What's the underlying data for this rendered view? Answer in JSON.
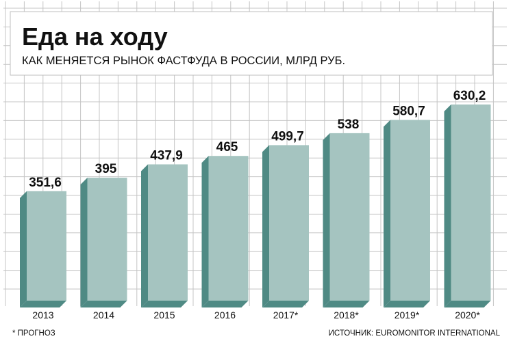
{
  "header": {
    "title": "Еда на ходу",
    "subtitle": "КАК МЕНЯЕТСЯ РЫНОК ФАСТФУДА В РОССИИ, МЛРД РУБ."
  },
  "footer": {
    "note": "* ПРОГНОЗ",
    "source": "ИСТОЧНИК: EUROMONITOR INTERNATIONAL"
  },
  "chart_data": {
    "type": "bar",
    "categories": [
      "2013",
      "2014",
      "2015",
      "2016",
      "2017*",
      "2018*",
      "2019*",
      "2020*"
    ],
    "values": [
      351.6,
      395,
      437.9,
      465,
      499.7,
      538,
      580.7,
      630.2
    ],
    "value_labels": [
      "351,6",
      "395",
      "437,9",
      "465",
      "499,7",
      "538",
      "580,7",
      "630,2"
    ],
    "grid": true,
    "colors": {
      "bar_front": "#a5c4c0",
      "bar_side": "#4f8a84",
      "grid": "#c4c4c4",
      "border": "#bfbfbf"
    }
  }
}
